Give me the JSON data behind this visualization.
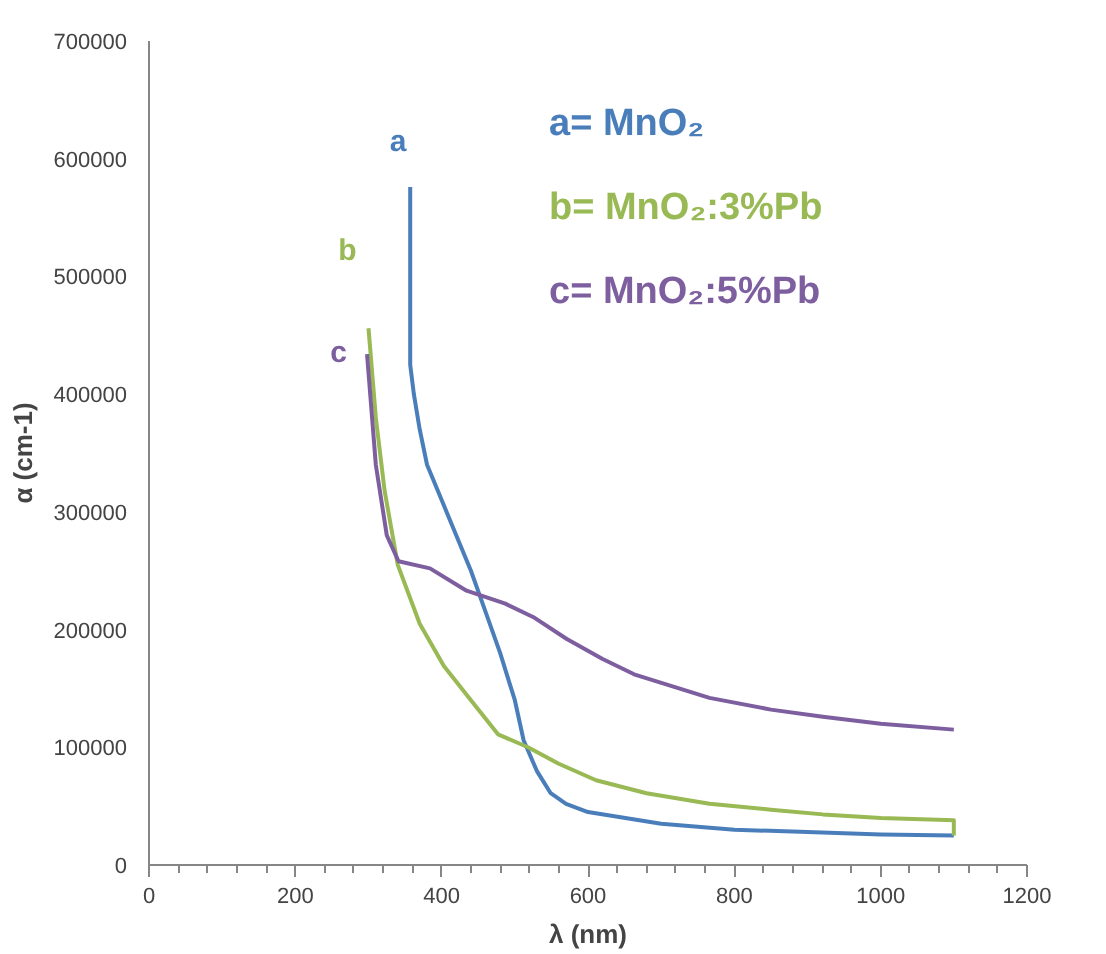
{
  "chart_data": {
    "type": "line",
    "xlabel": "λ (nm)",
    "ylabel": "α (cm-1)",
    "xlim": [
      0,
      1200
    ],
    "ylim": [
      0,
      700000
    ],
    "xticks": [
      0,
      200,
      400,
      600,
      800,
      1000,
      1200
    ],
    "yticks": [
      0,
      100000,
      200000,
      300000,
      400000,
      500000,
      600000,
      700000
    ],
    "grid": false,
    "marker": "none",
    "line_style": "solid",
    "series": [
      {
        "name": "a",
        "color": "#4a7ebb",
        "x": [
          357,
          357,
          362,
          370,
          380,
          400,
          420,
          440,
          460,
          480,
          500,
          512,
          530,
          549,
          570,
          600,
          700,
          800,
          900,
          1000,
          1100
        ],
        "values": [
          576000,
          425000,
          400000,
          370000,
          340000,
          310000,
          280000,
          250000,
          215000,
          180000,
          140000,
          106000,
          80000,
          61000,
          52000,
          45000,
          35000,
          30000,
          28000,
          26000,
          25000
        ]
      },
      {
        "name": "b",
        "color": "#98b954",
        "x": [
          300,
          310,
          322,
          340,
          370,
          403,
          440,
          477,
          518,
          560,
          611,
          680,
          766,
          850,
          921,
          1000,
          1100,
          1100
        ],
        "values": [
          456000,
          380000,
          318000,
          255000,
          205000,
          169000,
          140000,
          111000,
          100000,
          86000,
          72000,
          61000,
          52000,
          47000,
          43000,
          40000,
          38000,
          25000
        ]
      },
      {
        "name": "c",
        "color": "#7d5fa0",
        "x": [
          298,
          310,
          325,
          341,
          384,
          434,
          487,
          527,
          571,
          620,
          663,
          766,
          850,
          921,
          1000,
          1100
        ],
        "values": [
          434000,
          340000,
          280000,
          258000,
          252000,
          233000,
          222000,
          210000,
          192000,
          175000,
          162000,
          142000,
          132000,
          126000,
          120000,
          115000
        ]
      }
    ],
    "annotations": [
      "a= MnO₂",
      "b= MnO₂:3%Pb",
      "c= MnO₂:5%Pb"
    ]
  }
}
